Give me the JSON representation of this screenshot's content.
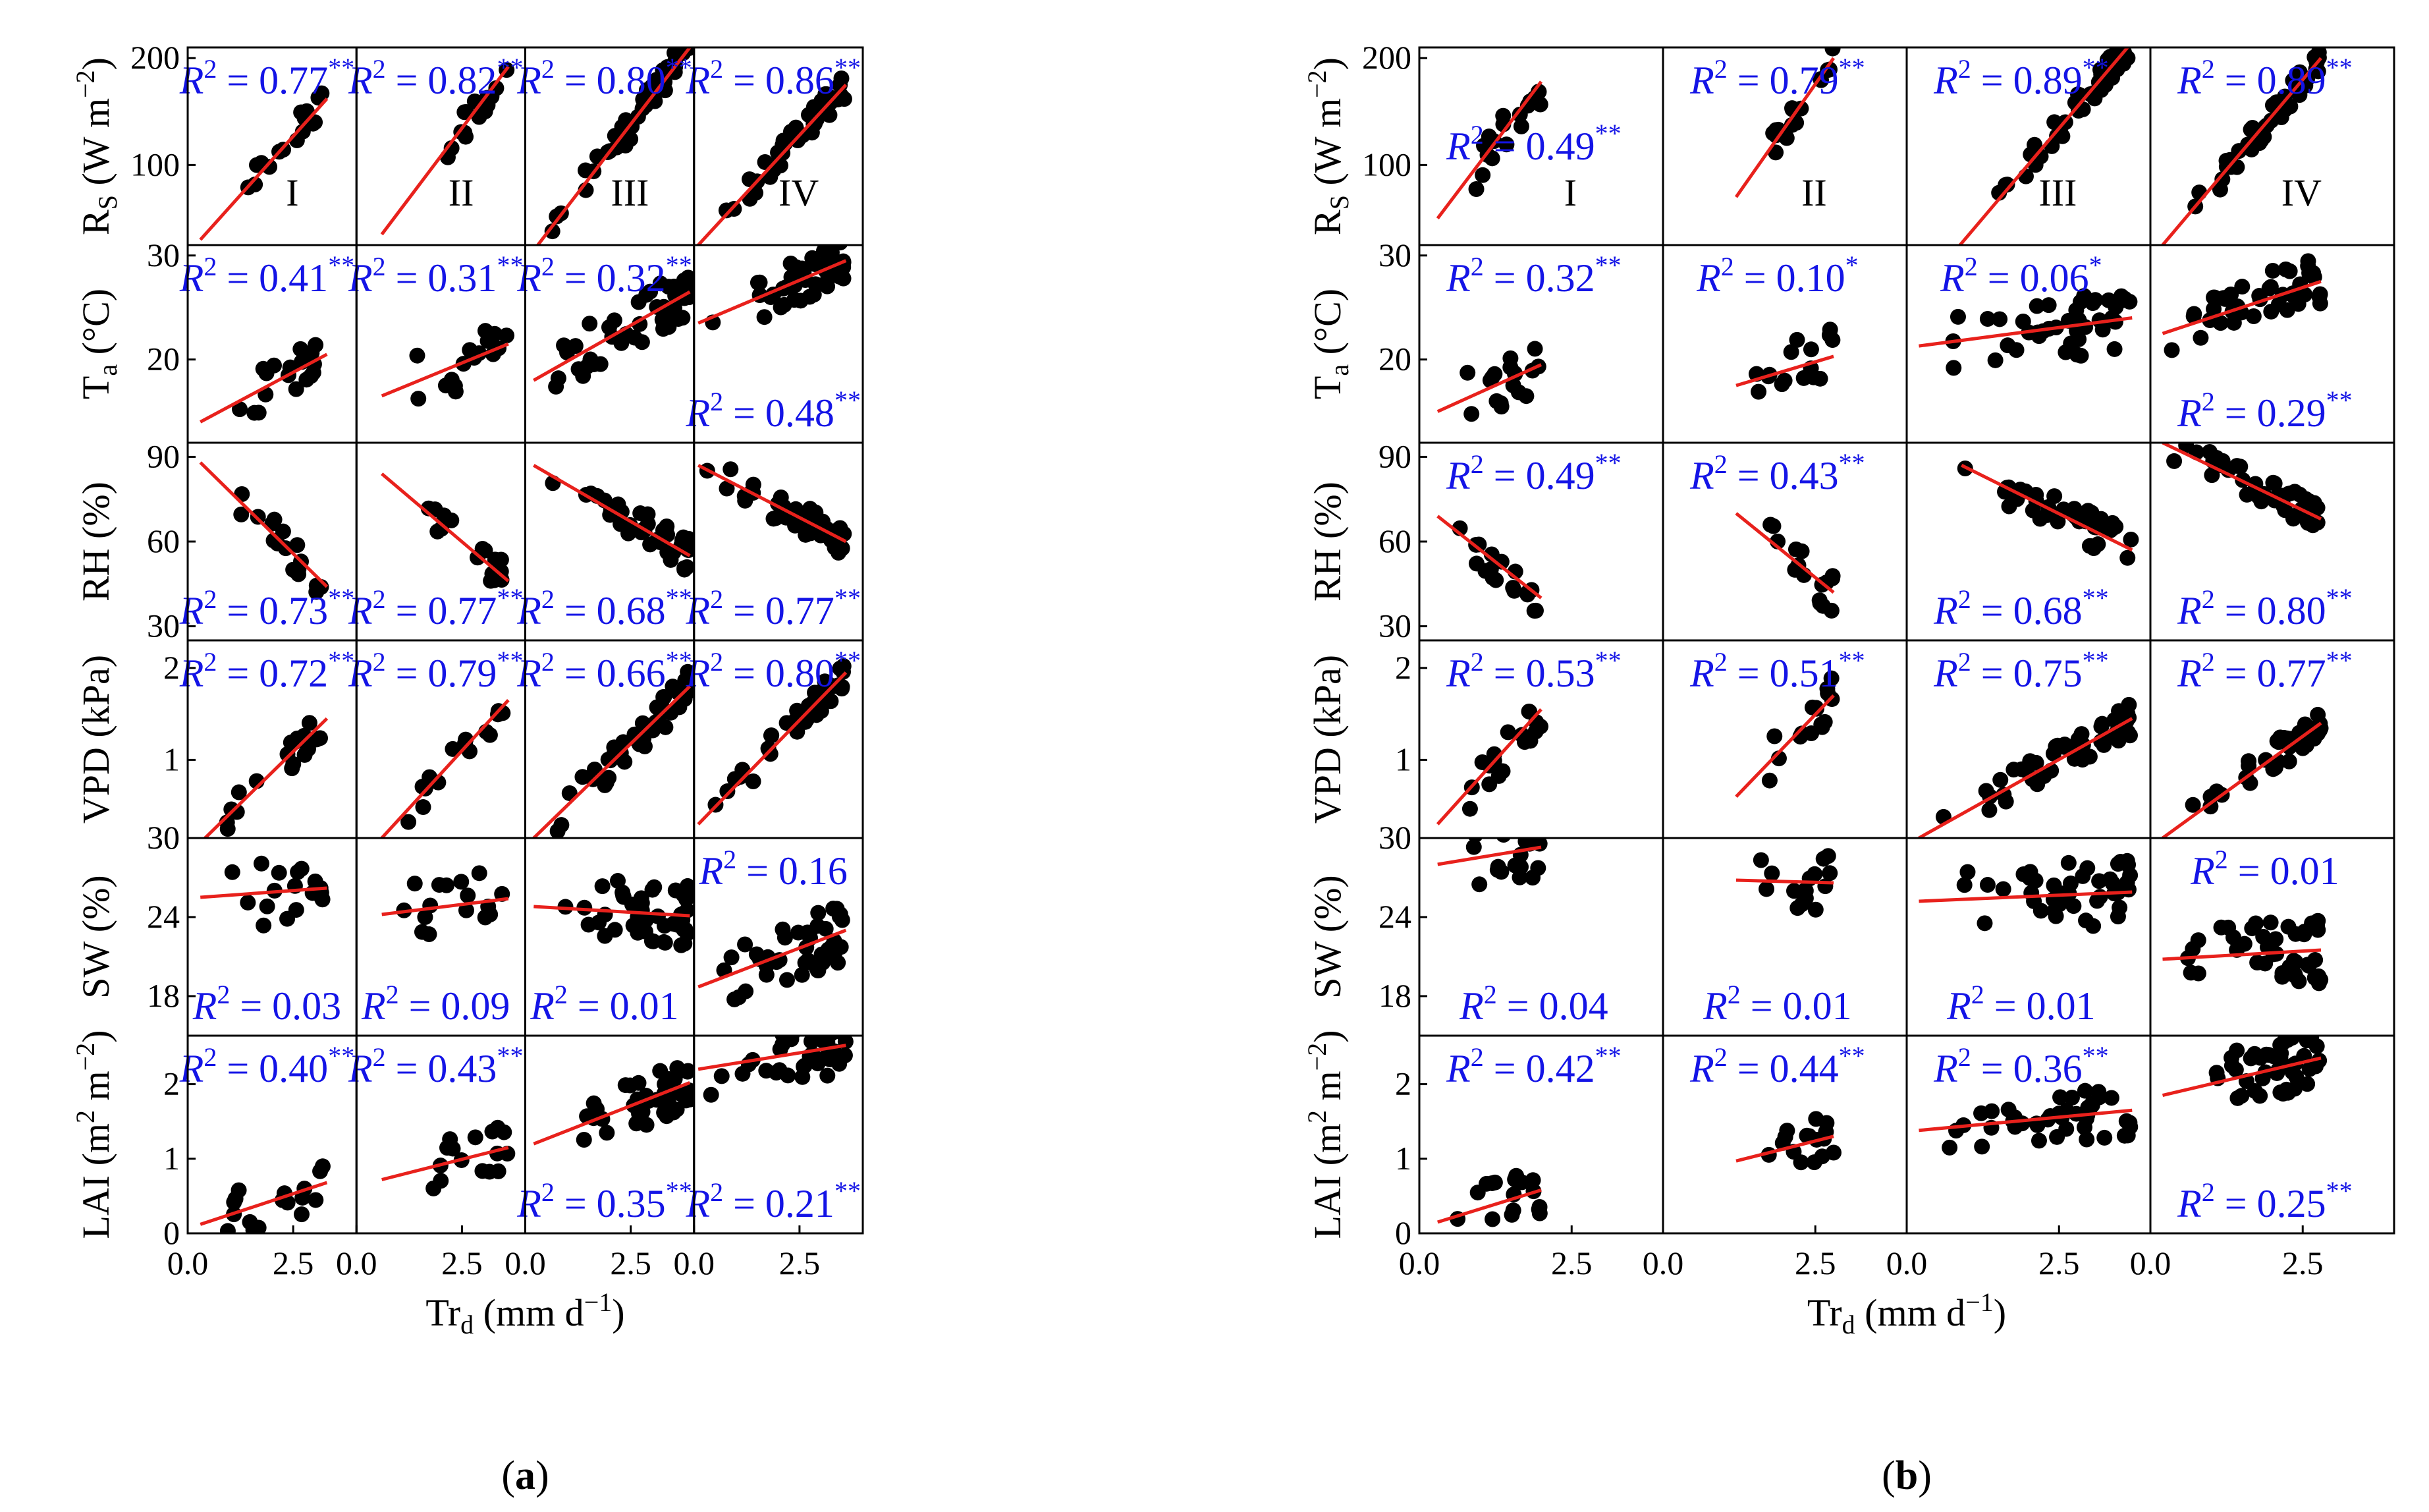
{
  "panel_labels": [
    "(a)",
    "(b)"
  ],
  "x_label": "Tr",
  "x_label_sub": "d",
  "x_label_unit": "(mm d",
  "x_label_exp": "−1",
  "x_label_close": ")",
  "stage_labels": [
    "I",
    "II",
    "III",
    "IV"
  ],
  "row_labels": [
    {
      "main": "R",
      "sub": "S",
      "unit": " (W m",
      "exp": "−2",
      "close": ")"
    },
    {
      "main": "T",
      "sub": "a",
      "unit": " (°C)",
      "exp": "",
      "close": ""
    },
    {
      "main": "RH (%)",
      "sub": "",
      "unit": "",
      "exp": "",
      "close": ""
    },
    {
      "main": "VPD (kPa)",
      "sub": "",
      "unit": "",
      "exp": "",
      "close": ""
    },
    {
      "main": "SW (%)",
      "sub": "",
      "unit": "",
      "exp": "",
      "close": ""
    },
    {
      "main": "LAI (m",
      "sub": "",
      "unit": "",
      "exp": "2",
      "close": " m",
      "exp2": "−2",
      "close2": ")"
    }
  ],
  "colors": {
    "points": "#000000",
    "fit_line": "#e8211c",
    "annotation": "#1414e6",
    "axes": "#000000"
  },
  "chart_data": [
    {
      "type": "scatter",
      "panel": "(a)",
      "xlim": [
        0,
        4
      ],
      "x_ticks": [
        0.0,
        2.5
      ],
      "x_tick_labels": [
        "0.0",
        "2.5"
      ],
      "rows": [
        {
          "variable": "Rs",
          "ylim": [
            25,
            210
          ],
          "y_ticks": [
            100,
            200
          ],
          "y_tick_labels": [
            "100",
            "200"
          ],
          "r2": [
            "0.77",
            "0.82",
            "0.80",
            "0.86"
          ],
          "sig": [
            "**",
            "**",
            "**",
            "**"
          ],
          "ann_pos": [
            "top",
            "top",
            "top",
            "top"
          ],
          "fit": [
            [
              0.3,
              30,
              3.3,
              162
            ],
            [
              0.6,
              35,
              3.6,
              192
            ],
            [
              0.2,
              20,
              3.9,
              210
            ],
            [
              0.1,
              25,
              3.6,
              175
            ]
          ]
        },
        {
          "variable": "Ta",
          "ylim": [
            12,
            31
          ],
          "y_ticks": [
            20,
            30
          ],
          "y_tick_labels": [
            "20",
            "30"
          ],
          "r2": [
            "0.41",
            "0.31",
            "0.32",
            "0.48"
          ],
          "sig": [
            "**",
            "**",
            "**",
            "**"
          ],
          "ann_pos": [
            "top",
            "top",
            "top",
            "bottom"
          ],
          "fit": [
            [
              0.3,
              14,
              3.3,
              20.5
            ],
            [
              0.6,
              16.5,
              3.6,
              21.5
            ],
            [
              0.2,
              18,
              3.9,
              26.5
            ],
            [
              0.1,
              23.5,
              3.6,
              29.5
            ]
          ]
        },
        {
          "variable": "RH",
          "ylim": [
            25,
            95
          ],
          "y_ticks": [
            30,
            60,
            90
          ],
          "y_tick_labels": [
            "30",
            "60",
            "90"
          ],
          "r2": [
            "0.73",
            "0.77",
            "0.68",
            "0.77"
          ],
          "sig": [
            "**",
            "**",
            "**",
            "**"
          ],
          "ann_pos": [
            "bottom",
            "bottom",
            "bottom",
            "bottom"
          ],
          "fit": [
            [
              0.3,
              88,
              3.3,
              44
            ],
            [
              0.6,
              84,
              3.6,
              46
            ],
            [
              0.2,
              87,
              3.9,
              55
            ],
            [
              0.1,
              87,
              3.6,
              60
            ]
          ]
        },
        {
          "variable": "VPD",
          "ylim": [
            0.15,
            2.3
          ],
          "y_ticks": [
            1,
            2
          ],
          "y_tick_labels": [
            "1",
            "2"
          ],
          "r2": [
            "0.72",
            "0.79",
            "0.66",
            "0.80"
          ],
          "sig": [
            "**",
            "**",
            "**",
            "**"
          ],
          "ann_pos": [
            "top",
            "top",
            "top",
            "top"
          ],
          "fit": [
            [
              0.3,
              0.1,
              3.3,
              1.45
            ],
            [
              0.6,
              0.15,
              3.6,
              1.65
            ],
            [
              0.2,
              0.15,
              3.9,
              1.8
            ],
            [
              0.1,
              0.3,
              3.6,
              1.95
            ]
          ]
        },
        {
          "variable": "SW",
          "ylim": [
            15,
            30
          ],
          "y_ticks": [
            18,
            24,
            30
          ],
          "y_tick_labels": [
            "18",
            "24",
            "30"
          ],
          "r2": [
            "0.03",
            "0.09",
            "0.01",
            "0.16"
          ],
          "sig": [
            "",
            "",
            "",
            ""
          ],
          "ann_pos": [
            "bottom",
            "bottom",
            "bottom",
            "top"
          ],
          "fit": [
            [
              0.3,
              25.5,
              3.3,
              26.2
            ],
            [
              0.6,
              24.2,
              3.6,
              25.4
            ],
            [
              0.2,
              24.8,
              3.9,
              24.1
            ],
            [
              0.1,
              18.7,
              3.6,
              23
            ]
          ]
        },
        {
          "variable": "LAI",
          "ylim": [
            0,
            2.65
          ],
          "y_ticks": [
            0,
            1,
            2
          ],
          "y_tick_labels": [
            "0",
            "1",
            "2"
          ],
          "r2": [
            "0.40",
            "0.43",
            "0.35",
            "0.21"
          ],
          "sig": [
            "**",
            "**",
            "**",
            "**"
          ],
          "ann_pos": [
            "top",
            "top",
            "bottom",
            "bottom"
          ],
          "fit": [
            [
              0.3,
              0.12,
              3.3,
              0.68
            ],
            [
              0.6,
              0.72,
              3.6,
              1.15
            ],
            [
              0.2,
              1.2,
              3.9,
              2.02
            ],
            [
              0.1,
              2.2,
              3.6,
              2.52
            ]
          ]
        }
      ]
    },
    {
      "type": "scatter",
      "panel": "(b)",
      "xlim": [
        0,
        4
      ],
      "x_ticks": [
        0.0,
        2.5
      ],
      "x_tick_labels": [
        "0.0",
        "2.5"
      ],
      "rows": [
        {
          "variable": "Rs",
          "ylim": [
            25,
            210
          ],
          "y_ticks": [
            100,
            200
          ],
          "y_tick_labels": [
            "100",
            "200"
          ],
          "r2": [
            "0.49",
            "0.79",
            "0.89",
            "0.89"
          ],
          "sig": [
            "**",
            "**",
            "**",
            "**"
          ],
          "ann_pos": [
            "mid",
            "top",
            "top",
            "top"
          ],
          "fit": [
            [
              0.3,
              50,
              2.0,
              178
            ],
            [
              1.2,
              70,
              2.8,
              200
            ],
            [
              0.8,
              20,
              3.7,
              215
            ],
            [
              0.2,
              25,
              2.8,
              200
            ]
          ]
        },
        {
          "variable": "Ta",
          "ylim": [
            12,
            31
          ],
          "y_ticks": [
            20,
            30
          ],
          "y_tick_labels": [
            "20",
            "30"
          ],
          "r2": [
            "0.32",
            "0.10",
            "0.06",
            "0.29"
          ],
          "sig": [
            "**",
            "*",
            "*",
            "**"
          ],
          "ann_pos": [
            "top",
            "top",
            "top",
            "bottom"
          ],
          "fit": [
            [
              0.3,
              15,
              2.0,
              19.5
            ],
            [
              1.2,
              17.5,
              2.8,
              20.3
            ],
            [
              0.2,
              21.3,
              3.7,
              24
            ],
            [
              0.2,
              22.5,
              2.8,
              27.5
            ]
          ]
        },
        {
          "variable": "RH",
          "ylim": [
            25,
            95
          ],
          "y_ticks": [
            30,
            60,
            90
          ],
          "y_tick_labels": [
            "30",
            "60",
            "90"
          ],
          "r2": [
            "0.49",
            "0.43",
            "0.68",
            "0.80"
          ],
          "sig": [
            "**",
            "**",
            "**",
            "**"
          ],
          "ann_pos": [
            "top",
            "top",
            "bottom",
            "bottom"
          ],
          "fit": [
            [
              0.3,
              69,
              2.0,
              40
            ],
            [
              1.2,
              70,
              2.8,
              42
            ],
            [
              0.9,
              87,
              3.7,
              57
            ],
            [
              0.2,
              95,
              2.8,
              68
            ]
          ]
        },
        {
          "variable": "VPD",
          "ylim": [
            0.15,
            2.3
          ],
          "y_ticks": [
            1,
            2
          ],
          "y_tick_labels": [
            "1",
            "2"
          ],
          "r2": [
            "0.53",
            "0.51",
            "0.75",
            "0.77"
          ],
          "sig": [
            "**",
            "**",
            "**",
            "**"
          ],
          "ann_pos": [
            "top",
            "top",
            "top",
            "top"
          ],
          "fit": [
            [
              0.3,
              0.3,
              2.0,
              1.55
            ],
            [
              1.2,
              0.6,
              2.8,
              1.7
            ],
            [
              0.2,
              0.15,
              3.7,
              1.45
            ],
            [
              0.2,
              0.15,
              2.8,
              1.4
            ]
          ]
        },
        {
          "variable": "SW",
          "ylim": [
            15,
            30
          ],
          "y_ticks": [
            18,
            24,
            30
          ],
          "y_tick_labels": [
            "18",
            "24",
            "30"
          ],
          "r2": [
            "0.04",
            "0.01",
            "0.01",
            "0.01"
          ],
          "sig": [
            "",
            "",
            "",
            ""
          ],
          "ann_pos": [
            "bottom",
            "bottom",
            "bottom",
            "top"
          ],
          "fit": [
            [
              0.3,
              28,
              2.0,
              29.3
            ],
            [
              1.2,
              26.8,
              2.8,
              26.6
            ],
            [
              0.2,
              25.2,
              3.7,
              25.9
            ],
            [
              0.2,
              20.8,
              2.8,
              21.5
            ]
          ]
        },
        {
          "variable": "LAI",
          "ylim": [
            0,
            2.65
          ],
          "y_ticks": [
            0,
            1,
            2
          ],
          "y_tick_labels": [
            "0",
            "1",
            "2"
          ],
          "r2": [
            "0.42",
            "0.44",
            "0.36",
            "0.25"
          ],
          "sig": [
            "**",
            "**",
            "**",
            "**"
          ],
          "ann_pos": [
            "top",
            "top",
            "top",
            "bottom"
          ],
          "fit": [
            [
              0.3,
              0.15,
              2.0,
              0.58
            ],
            [
              1.2,
              0.97,
              2.8,
              1.3
            ],
            [
              0.2,
              1.38,
              3.7,
              1.65
            ],
            [
              0.2,
              1.85,
              2.8,
              2.35
            ]
          ]
        }
      ]
    }
  ]
}
